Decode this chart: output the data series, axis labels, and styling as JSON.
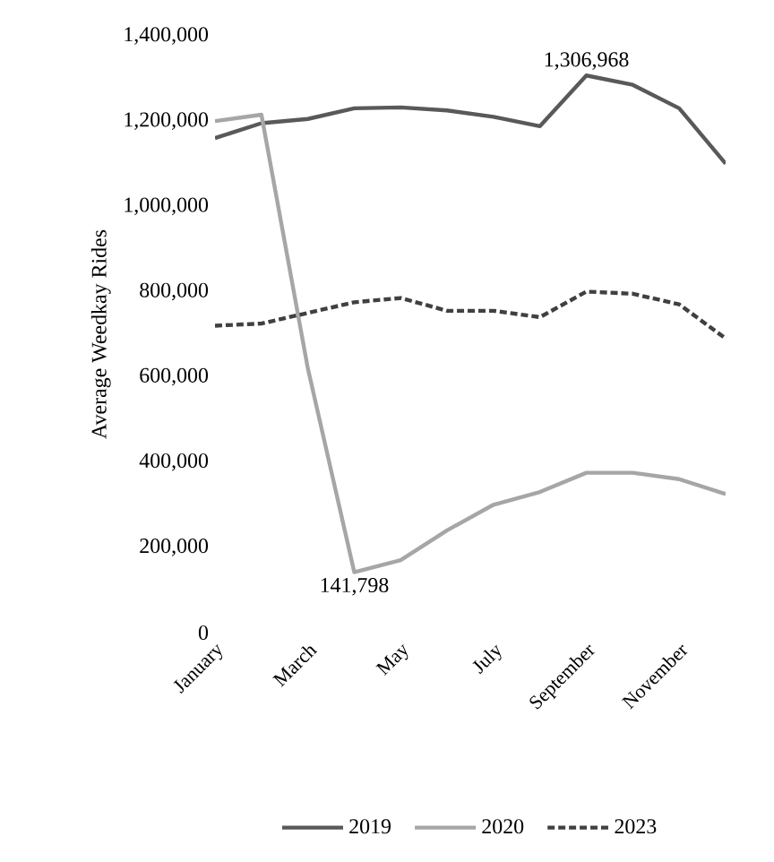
{
  "chart_data": {
    "type": "line",
    "ylabel": "Average Weedkay Rides",
    "categories": [
      "January",
      null,
      "March",
      null,
      "May",
      null,
      "July",
      null,
      "September",
      null,
      "November",
      null
    ],
    "series": [
      {
        "name": "2019",
        "color": "#595959",
        "line_style": "solid",
        "values": [
          1160000,
          1195000,
          1205000,
          1230000,
          1232000,
          1225000,
          1210000,
          1188000,
          1306968,
          1285000,
          1230000,
          1100000
        ],
        "value_labels": [
          null,
          null,
          null,
          null,
          null,
          null,
          null,
          null,
          "1,306,968",
          null,
          null,
          null
        ]
      },
      {
        "name": "2020",
        "color": "#a6a6a6",
        "line_style": "solid",
        "values": [
          1200000,
          1215000,
          620000,
          141798,
          170000,
          240000,
          300000,
          330000,
          375000,
          375000,
          360000,
          325000
        ],
        "value_labels": [
          null,
          null,
          null,
          "141,798",
          null,
          null,
          null,
          null,
          null,
          null,
          null,
          null
        ]
      },
      {
        "name": "2023",
        "color": "#404040",
        "line_style": "dashed",
        "values": [
          720000,
          725000,
          750000,
          775000,
          785000,
          755000,
          755000,
          740000,
          800000,
          795000,
          770000,
          690000
        ]
      }
    ],
    "ylim": [
      0,
      1400000
    ],
    "yticks": [
      0,
      {
        "value": 200000,
        "label": "200,000"
      },
      {
        "value": 400000,
        "label": "400,000"
      },
      {
        "value": 600000,
        "label": "600,000"
      },
      {
        "value": 800000,
        "label": "800,000"
      },
      {
        "value": 1000000,
        "label": "1,000,000"
      },
      {
        "value": 1200000,
        "label": "1,200,000"
      },
      {
        "value": 1400000,
        "label": "1,400,000"
      }
    ],
    "grid": false,
    "legend": "bottom",
    "marker": "none"
  }
}
